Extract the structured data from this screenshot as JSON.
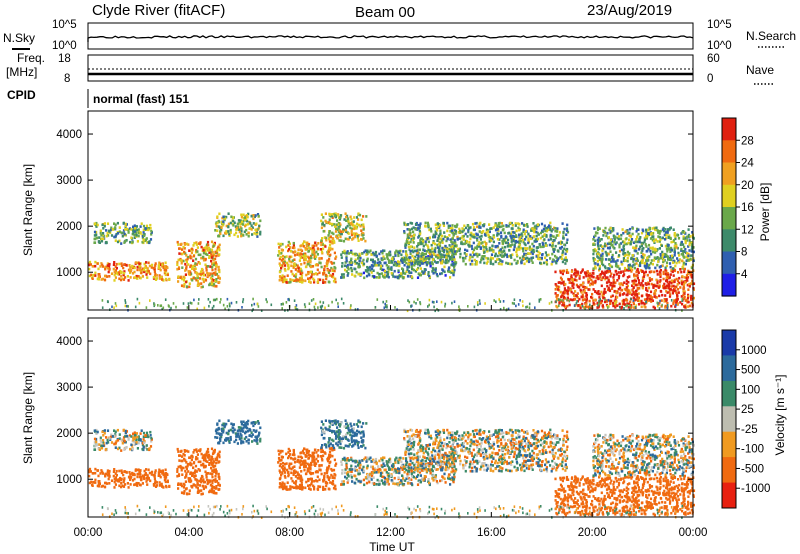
{
  "header": {
    "station": "Clyde River (fitACF)",
    "beam": "Beam 00",
    "date": "23/Aug/2019"
  },
  "strip_nsky": {
    "left_label": "N.Sky",
    "left_ticks": [
      "10^5",
      "10^0"
    ],
    "right_label": "N.Search",
    "right_ticks": [
      "10^5",
      "10^0"
    ]
  },
  "strip_freq": {
    "left_label_1": "Freq.",
    "left_label_2": "[MHz]",
    "left_ticks": [
      "18",
      "8"
    ],
    "right_label": "Nave",
    "right_ticks": [
      "60",
      "0"
    ]
  },
  "cpid": {
    "label": "CPID",
    "value": "normal (fast) 151"
  },
  "panel_power": {
    "ylabel": "Slant Range [km]",
    "yticks": [
      "4000",
      "3000",
      "2000",
      "1000"
    ],
    "colorbar_label": "Power [dB]",
    "colorbar_ticks": [
      "28",
      "24",
      "20",
      "16",
      "12",
      "8",
      "4"
    ]
  },
  "panel_velocity": {
    "ylabel": "Slant Range [km]",
    "yticks": [
      "4000",
      "3000",
      "2000",
      "1000"
    ],
    "colorbar_label": "Velocity [m s⁻¹]",
    "colorbar_ticks": [
      "1000",
      "500",
      "100",
      "25",
      "-25",
      "-100",
      "-500",
      "-1000"
    ]
  },
  "xaxis": {
    "label": "Time UT",
    "ticks": [
      "00:00",
      "04:00",
      "08:00",
      "12:00",
      "16:00",
      "20:00",
      "00:00"
    ]
  },
  "colors": {
    "power_scale": [
      "#1f1fe6",
      "#2f5fb0",
      "#3d8a6a",
      "#6aa84a",
      "#e0d020",
      "#f0a020",
      "#f06a10",
      "#e02010"
    ],
    "velocity_scale": [
      "#1a3aa8",
      "#2c6a9c",
      "#3a8a68",
      "#bdbdb0",
      "#f09a20",
      "#f06a10",
      "#e82010"
    ],
    "velocity_ground": "#c6c6c0"
  },
  "chart_data": [
    {
      "type": "heatmap",
      "title": "Power",
      "xlabel": "Time UT",
      "ylabel": "Slant Range [km]",
      "xlim": [
        0,
        24
      ],
      "ylim": [
        180,
        4500
      ],
      "zlim": [
        0,
        30
      ],
      "colorbar": "Power [dB]",
      "regions": [
        {
          "t0": 0.0,
          "t1": 3.2,
          "r0": 850,
          "r1": 1250,
          "value": 22
        },
        {
          "t0": 0.2,
          "t1": 2.5,
          "r0": 1650,
          "r1": 2100,
          "value": 12
        },
        {
          "t0": 3.5,
          "t1": 5.2,
          "r0": 700,
          "r1": 1700,
          "value": 20
        },
        {
          "t0": 5.0,
          "t1": 6.8,
          "r0": 1800,
          "r1": 2300,
          "value": 14
        },
        {
          "t0": 7.5,
          "t1": 9.8,
          "r0": 800,
          "r1": 1700,
          "value": 20
        },
        {
          "t0": 9.2,
          "t1": 11.0,
          "r0": 1700,
          "r1": 2300,
          "value": 16
        },
        {
          "t0": 10.0,
          "t1": 14.5,
          "r0": 900,
          "r1": 1500,
          "value": 10
        },
        {
          "t0": 12.5,
          "t1": 19.0,
          "r0": 1200,
          "r1": 2100,
          "value": 12
        },
        {
          "t0": 18.5,
          "t1": 24.0,
          "r0": 250,
          "r1": 1100,
          "value": 27
        },
        {
          "t0": 20.0,
          "t1": 24.0,
          "r0": 1100,
          "r1": 2000,
          "value": 12
        }
      ]
    },
    {
      "type": "heatmap",
      "title": "Velocity",
      "xlabel": "Time UT",
      "ylabel": "Slant Range [km]",
      "xlim": [
        0,
        24
      ],
      "ylim": [
        180,
        4500
      ],
      "zlim": [
        -1000,
        1000
      ],
      "colorbar": "Velocity [m s-1]",
      "regions": [
        {
          "t0": 0.0,
          "t1": 3.2,
          "r0": 850,
          "r1": 1250,
          "value": -300
        },
        {
          "t0": 0.2,
          "t1": 2.5,
          "r0": 1650,
          "r1": 2100,
          "value": 0
        },
        {
          "t0": 3.5,
          "t1": 5.2,
          "r0": 700,
          "r1": 1700,
          "value": -300
        },
        {
          "t0": 5.0,
          "t1": 6.8,
          "r0": 1800,
          "r1": 2300,
          "value": 200
        },
        {
          "t0": 7.5,
          "t1": 9.8,
          "r0": 800,
          "r1": 1700,
          "value": -300
        },
        {
          "t0": 9.2,
          "t1": 11.0,
          "r0": 1700,
          "r1": 2300,
          "value": 150
        },
        {
          "t0": 10.0,
          "t1": 14.5,
          "r0": 900,
          "r1": 1500,
          "value": 0
        },
        {
          "t0": 12.5,
          "t1": 19.0,
          "r0": 1200,
          "r1": 2100,
          "value": 0
        },
        {
          "t0": 18.5,
          "t1": 24.0,
          "r0": 250,
          "r1": 1100,
          "value": -300
        },
        {
          "t0": 20.0,
          "t1": 24.0,
          "r0": 1100,
          "r1": 2000,
          "value": 0
        }
      ]
    }
  ]
}
